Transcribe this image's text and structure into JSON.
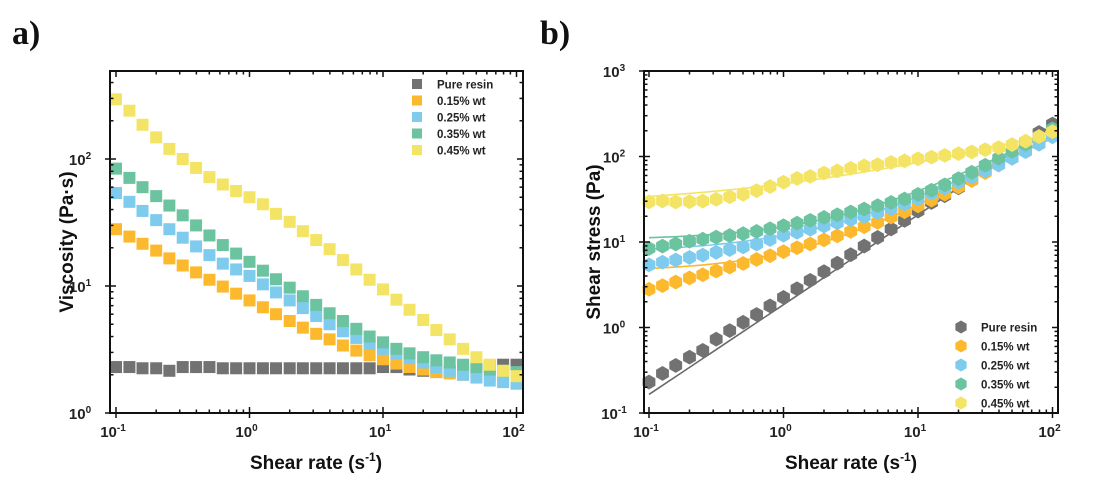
{
  "figure": {
    "panels": [
      {
        "id": "a",
        "label": "a)"
      },
      {
        "id": "b",
        "label": "b)"
      }
    ]
  },
  "colors": {
    "Pure resin": "#727272",
    "0.15% wt": "#fdb92e",
    "0.25% wt": "#7fcbee",
    "0.35% wt": "#6cc3a0",
    "0.45% wt": "#f4e466"
  },
  "chart_data": [
    {
      "panel": "a",
      "type": "scatter",
      "marker": "square",
      "title": "",
      "xlabel": "Shear rate (s-1)",
      "xlabel_base": "Shear rate (s",
      "xlabel_sup": "-1",
      "xlabel_end": ")",
      "ylabel": "Viscosity (Pa·s)",
      "xscale": "log",
      "yscale": "log",
      "xlim": [
        0.1,
        100
      ],
      "ylim": [
        1,
        500
      ],
      "xticks": [
        {
          "base": "10",
          "exp": "-1",
          "value": 0.1
        },
        {
          "base": "10",
          "exp": "0",
          "value": 1
        },
        {
          "base": "10",
          "exp": "1",
          "value": 10
        },
        {
          "base": "10",
          "exp": "2",
          "value": 100
        }
      ],
      "yticks": [
        {
          "base": "10",
          "exp": "0",
          "value": 1
        },
        {
          "base": "10",
          "exp": "1",
          "value": 10
        },
        {
          "base": "10",
          "exp": "2",
          "value": 100
        }
      ],
      "grid": false,
      "legend": "top-right",
      "x": [
        0.1,
        0.126,
        0.158,
        0.2,
        0.251,
        0.316,
        0.398,
        0.501,
        0.631,
        0.794,
        1.0,
        1.26,
        1.58,
        2.0,
        2.51,
        3.16,
        3.98,
        5.01,
        6.31,
        7.94,
        10.0,
        12.6,
        15.8,
        20.0,
        25.1,
        31.6,
        39.8,
        50.1,
        63.1,
        79.4,
        100
      ],
      "series": [
        {
          "name": "Pure resin",
          "values": [
            2.3,
            2.3,
            2.25,
            2.25,
            2.15,
            2.3,
            2.3,
            2.3,
            2.25,
            2.25,
            2.25,
            2.25,
            2.25,
            2.25,
            2.25,
            2.25,
            2.25,
            2.25,
            2.25,
            2.25,
            2.3,
            2.3,
            2.2,
            2.15,
            2.1,
            2.1,
            2.2,
            2.3,
            2.35,
            2.4,
            2.4
          ]
        },
        {
          "name": "0.15% wt",
          "values": [
            28,
            24.5,
            21.5,
            19,
            16.5,
            14.5,
            12.8,
            11.2,
            9.9,
            8.7,
            7.7,
            6.8,
            6.0,
            5.3,
            4.7,
            4.2,
            3.8,
            3.4,
            3.1,
            2.85,
            2.65,
            2.45,
            2.3,
            2.2,
            2.1,
            2.05,
            2.0,
            1.97,
            1.95,
            1.93,
            1.9
          ]
        },
        {
          "name": "0.25% wt",
          "values": [
            54,
            46,
            39,
            33,
            28,
            24,
            20.5,
            17.5,
            15,
            13.5,
            12,
            10.3,
            8.9,
            7.7,
            6.7,
            5.8,
            5.0,
            4.4,
            3.9,
            3.5,
            3.2,
            2.95,
            2.7,
            2.5,
            2.3,
            2.15,
            2.0,
            1.9,
            1.8,
            1.75,
            1.7
          ]
        },
        {
          "name": "0.35% wt",
          "values": [
            84,
            71,
            60,
            51,
            43,
            36,
            30,
            25,
            21,
            18,
            15.5,
            13.2,
            11.3,
            9.7,
            8.3,
            7.1,
            6.1,
            5.3,
            4.6,
            4.0,
            3.6,
            3.2,
            2.95,
            2.75,
            2.6,
            2.5,
            2.4,
            2.3,
            2.2,
            2.15,
            2.1
          ]
        },
        {
          "name": "0.45% wt",
          "values": [
            295,
            240,
            186,
            148,
            120,
            100,
            85,
            72,
            63,
            56,
            50,
            44,
            37,
            32,
            27,
            23,
            19.5,
            16,
            13.5,
            11.2,
            9.4,
            7.8,
            6.5,
            5.4,
            4.5,
            3.8,
            3.2,
            2.75,
            2.4,
            2.15,
            1.95
          ]
        }
      ]
    },
    {
      "panel": "b",
      "type": "scatter",
      "marker": "hexagon",
      "title": "",
      "xlabel": "Shear rate (s-1)",
      "xlabel_base": "Shear rate (s",
      "xlabel_sup": "-1",
      "xlabel_end": ")",
      "ylabel": "Shear stress (Pa)",
      "xscale": "log",
      "yscale": "log",
      "xlim": [
        0.1,
        100
      ],
      "ylim": [
        0.1,
        1000
      ],
      "xticks": [
        {
          "base": "10",
          "exp": "-1",
          "value": 0.1
        },
        {
          "base": "10",
          "exp": "0",
          "value": 1
        },
        {
          "base": "10",
          "exp": "1",
          "value": 10
        },
        {
          "base": "10",
          "exp": "2",
          "value": 100
        }
      ],
      "yticks": [
        {
          "base": "10",
          "exp": "-1",
          "value": 0.1
        },
        {
          "base": "10",
          "exp": "0",
          "value": 1
        },
        {
          "base": "10",
          "exp": "1",
          "value": 10
        },
        {
          "base": "10",
          "exp": "2",
          "value": 100
        },
        {
          "base": "10",
          "exp": "3",
          "value": 1000
        }
      ],
      "grid": false,
      "legend": "bottom-right",
      "x": [
        0.1,
        0.126,
        0.158,
        0.2,
        0.251,
        0.316,
        0.398,
        0.501,
        0.631,
        0.794,
        1.0,
        1.26,
        1.58,
        2.0,
        2.51,
        3.16,
        3.98,
        5.01,
        6.31,
        7.94,
        10.0,
        12.6,
        15.8,
        20.0,
        25.1,
        31.6,
        39.8,
        50.1,
        63.1,
        79.4,
        100
      ],
      "series": [
        {
          "name": "Pure resin",
          "values": [
            0.23,
            0.29,
            0.36,
            0.45,
            0.54,
            0.73,
            0.92,
            1.15,
            1.42,
            1.79,
            2.25,
            2.84,
            3.56,
            4.5,
            5.65,
            7.11,
            8.96,
            11.3,
            14.2,
            17.9,
            23.0,
            29.0,
            34.8,
            43.0,
            52.7,
            66.4,
            87.6,
            115,
            148,
            191,
            240
          ]
        },
        {
          "name": "0.15% wt",
          "values": [
            2.8,
            3.09,
            3.4,
            3.8,
            4.14,
            4.58,
            5.09,
            5.61,
            6.25,
            6.91,
            7.7,
            8.57,
            9.48,
            10.6,
            11.8,
            13.3,
            15.1,
            17.0,
            19.6,
            22.6,
            26.5,
            30.9,
            36.3,
            44.0,
            52.7,
            64.8,
            79.6,
            98.7,
            123,
            153,
            190
          ]
        },
        {
          "name": "0.25% wt",
          "values": [
            5.4,
            5.8,
            6.16,
            6.6,
            7.03,
            7.58,
            8.16,
            8.77,
            9.47,
            10.7,
            12.0,
            13.0,
            14.1,
            15.4,
            16.8,
            18.3,
            19.9,
            22.0,
            24.6,
            27.8,
            32.0,
            37.2,
            42.7,
            50.0,
            57.7,
            67.9,
            79.6,
            95.2,
            114,
            139,
            170
          ]
        },
        {
          "name": "0.35% wt",
          "values": [
            8.4,
            8.95,
            9.48,
            10.2,
            10.8,
            11.4,
            11.9,
            12.5,
            13.3,
            14.3,
            15.5,
            16.6,
            17.9,
            19.4,
            20.8,
            22.4,
            24.3,
            26.6,
            29.0,
            31.8,
            36.0,
            40.3,
            46.6,
            55.0,
            65.3,
            79.0,
            95.5,
            115,
            139,
            171,
            210
          ]
        },
        {
          "name": "0.45% wt",
          "values": [
            29.5,
            30.2,
            29.4,
            29.6,
            30.1,
            31.6,
            33.8,
            36.1,
            39.8,
            44.5,
            50.0,
            55.4,
            58.5,
            64.0,
            67.8,
            72.7,
            77.6,
            80.2,
            85.2,
            88.9,
            94.0,
            98.3,
            103,
            108,
            113,
            120,
            127,
            138,
            151,
            171,
            195
          ]
        }
      ],
      "fits": [
        {
          "name": "Pure resin",
          "model": "power-law",
          "tau0": 0,
          "K": 1.85,
          "n": 1.05
        },
        {
          "name": "0.15% wt",
          "model": "herschel-bulkley",
          "tau0": 4.5,
          "K": 3.0,
          "n": 0.88
        },
        {
          "name": "0.25% wt",
          "model": "herschel-bulkley",
          "tau0": 7.5,
          "K": 4.5,
          "n": 0.77
        },
        {
          "name": "0.35% wt",
          "model": "herschel-bulkley",
          "tau0": 10.5,
          "K": 4.6,
          "n": 0.8
        },
        {
          "name": "0.45% wt",
          "model": "herschel-bulkley",
          "tau0": 26,
          "K": 22,
          "n": 0.43
        }
      ]
    }
  ]
}
